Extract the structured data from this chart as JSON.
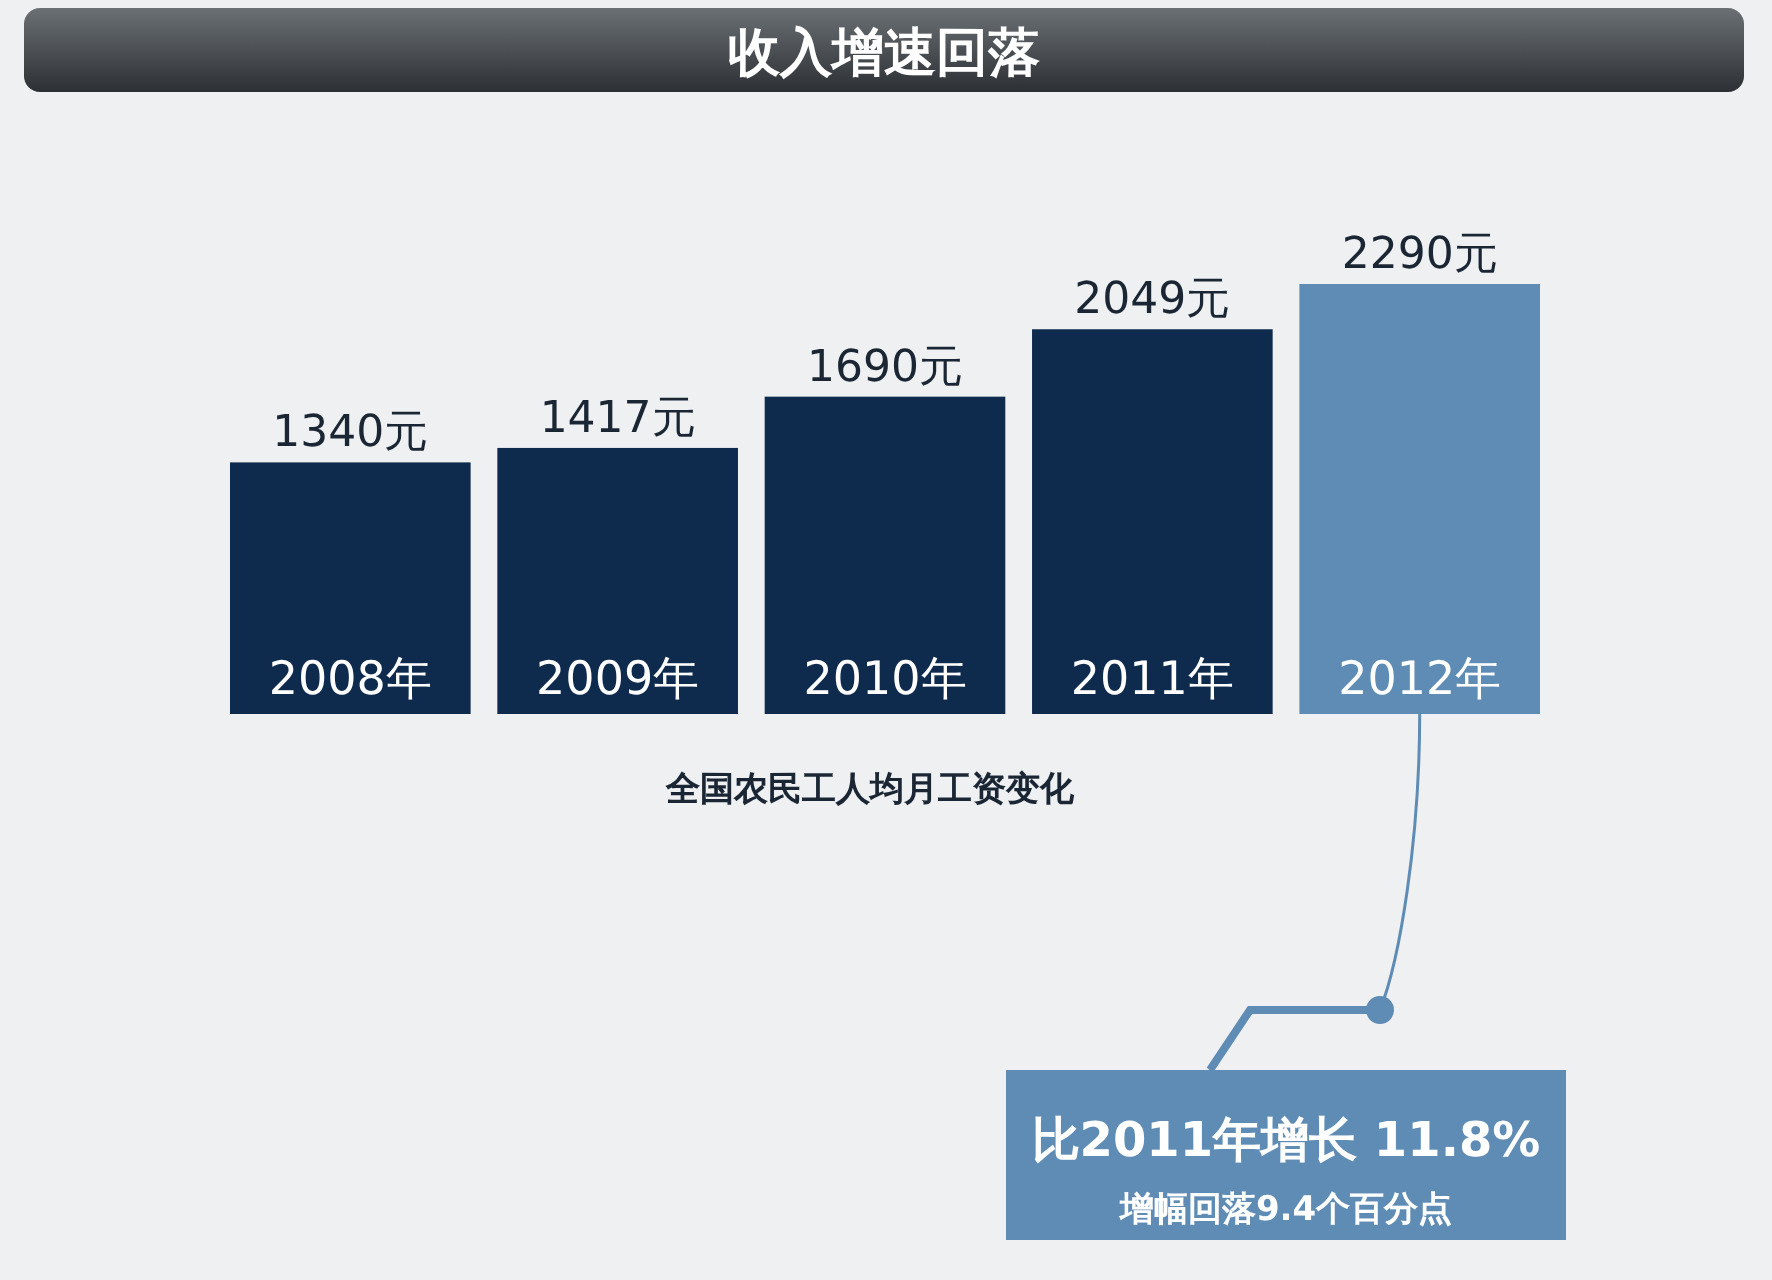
{
  "chart_data": {
    "type": "bar",
    "title": "收入增速回落",
    "xlabel": "全国农民工人均月工资变化",
    "categories": [
      "2008年",
      "2009年",
      "2010年",
      "2011年",
      "2012年"
    ],
    "values": [
      1340,
      1417,
      1690,
      2049,
      2290
    ],
    "value_labels": [
      "1340元",
      "1417元",
      "1690元",
      "2049元",
      "2290元"
    ],
    "colors": [
      "#0e2a4d",
      "#0e2a4d",
      "#0e2a4d",
      "#0e2a4d",
      "#5f8cb4"
    ],
    "annotations": [
      "比2011年增长 11.8%",
      "增幅回落9.4个百分点"
    ]
  }
}
